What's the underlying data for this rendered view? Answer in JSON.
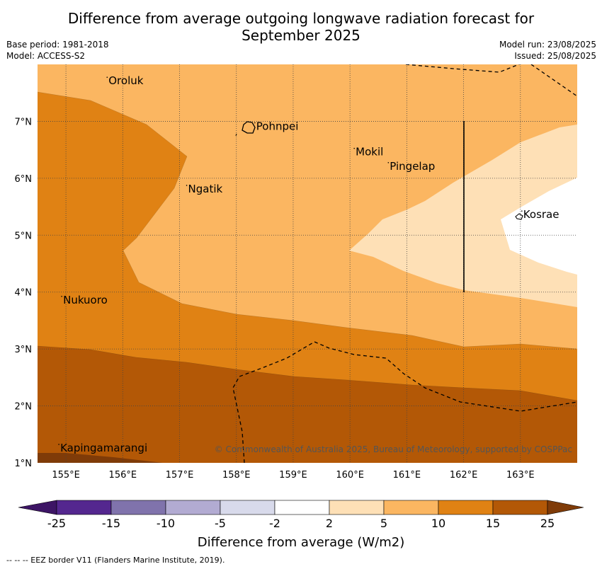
{
  "title_line1": "Difference from average outgoing longwave radiation forecast for",
  "title_line2": "September 2025",
  "meta_left": [
    "Base period: 1981-2018",
    "Model: ACCESS-S2"
  ],
  "meta_right": [
    "Model run: 23/08/2025",
    "Issued: 25/08/2025"
  ],
  "copyright": "© Commonwealth of Australia 2025, Bureau of Meteorology, supported by COSPPac",
  "footnote": "--  --  -- EEZ border V11 (Flanders Marine Institute, 2019).",
  "colorbar": {
    "label": "Difference from average (W/m2)",
    "ticks": [
      "-25",
      "-15",
      "-10",
      "-5",
      "-2",
      "2",
      "5",
      "10",
      "15",
      "25"
    ],
    "colors": [
      "#3d1565",
      "#54278f",
      "#8073ac",
      "#b2abd2",
      "#d8daeb",
      "#ffffff",
      "#fee0b6",
      "#fbb661",
      "#e08214",
      "#b35806",
      "#7f3b08"
    ]
  },
  "axes": {
    "lon_range": [
      154.5,
      164.0
    ],
    "lat_range": [
      1.0,
      8.0
    ],
    "lon_ticks": [
      "155°E",
      "156°E",
      "157°E",
      "158°E",
      "159°E",
      "160°E",
      "161°E",
      "162°E",
      "163°E"
    ],
    "lat_ticks": [
      "7°N",
      "6°N",
      "5°N",
      "4°N",
      "3°N",
      "2°N",
      "1°N"
    ]
  },
  "places": [
    {
      "name": "Oroluk",
      "lon": 155.75,
      "lat": 7.65
    },
    {
      "name": "Pohnpei",
      "lon": 158.35,
      "lat": 6.85
    },
    {
      "name": "Mokil",
      "lon": 160.1,
      "lat": 6.4
    },
    {
      "name": "Pingelap",
      "lon": 160.7,
      "lat": 6.15
    },
    {
      "name": "Ngatik",
      "lon": 157.15,
      "lat": 5.75
    },
    {
      "name": "Kosrae",
      "lon": 163.05,
      "lat": 5.3
    },
    {
      "name": "Nukuoro",
      "lon": 154.95,
      "lat": 3.8
    },
    {
      "name": "Kapingamarangi",
      "lon": 154.9,
      "lat": 1.2
    }
  ]
}
